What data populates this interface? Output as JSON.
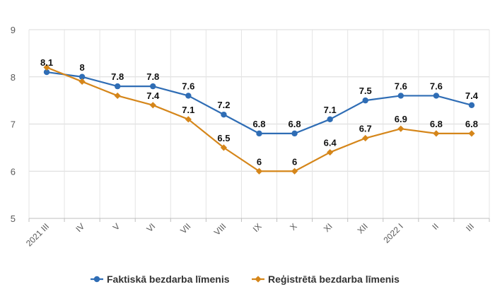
{
  "chart_data": {
    "type": "line",
    "title": "",
    "xlabel": "",
    "ylabel": "",
    "ylim": [
      5,
      9
    ],
    "yticks": [
      5,
      6,
      7,
      8,
      9
    ],
    "grid": true,
    "legend_position": "bottom",
    "categories": [
      "2021 III",
      "IV",
      "V",
      "VI",
      "VII",
      "VIII",
      "IX",
      "X",
      "XI",
      "XII",
      "2022 I",
      "II",
      "III"
    ],
    "series": [
      {
        "name": "Faktiskā bezdarba līmenis",
        "color": "#2f6db5",
        "marker": "circle",
        "values": [
          8.1,
          8,
          7.8,
          7.8,
          7.6,
          7.2,
          6.8,
          6.8,
          7.1,
          7.5,
          7.6,
          7.6,
          7.4
        ],
        "labels": [
          "8.1",
          "8",
          "7.8",
          "7.8",
          "7.6",
          "7.2",
          "6.8",
          "6.8",
          "7.1",
          "7.5",
          "7.6",
          "7.6",
          "7.4"
        ]
      },
      {
        "name": "Reģistrētā bezdarba līmenis",
        "color": "#d5861a",
        "marker": "diamond",
        "values": [
          8.2,
          7.9,
          7.6,
          7.4,
          7.1,
          6.5,
          6,
          6,
          6.4,
          6.7,
          6.9,
          6.8,
          6.8
        ],
        "labels": [
          "",
          "",
          "",
          "7.4",
          "7.1",
          "6.5",
          "6",
          "6",
          "6.4",
          "6.7",
          "6.9",
          "6.8",
          "6.8"
        ]
      }
    ]
  }
}
